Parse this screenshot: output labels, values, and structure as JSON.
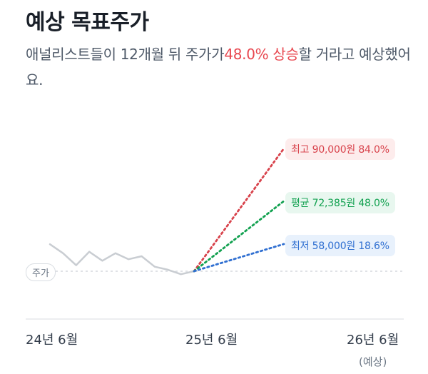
{
  "title": "예상 목표주가",
  "description": {
    "before": "애널리스트들이 12개월 뒤 주가가",
    "highlight": "48.0% 상승",
    "after": "할 거라고 예상했어요."
  },
  "targets": {
    "high": {
      "label": "최고 90,000원 84.0%"
    },
    "average": {
      "label": "평균 72,385원 48.0%"
    },
    "low": {
      "label": "최저 58,000원 18.6%"
    }
  },
  "price_chip": "주가",
  "x_axis": {
    "labels": [
      "24년 6월",
      "25년 6월",
      "26년 6월"
    ],
    "note": "(예상)"
  },
  "colors": {
    "high": "#d8424b",
    "average": "#12a150",
    "low": "#2f6fd1",
    "history": "#c9cdd2",
    "highlight": "#e8474f"
  },
  "chart_data": {
    "type": "line",
    "x": [
      "24년 6월",
      "25년 6월",
      "26년 6월"
    ],
    "history_relative_change_pct": [
      18,
      12,
      4,
      13,
      7,
      12,
      8,
      10,
      3,
      1,
      -2,
      0
    ],
    "projections": [
      {
        "name": "최고",
        "change_pct": 84.0,
        "price": 90000
      },
      {
        "name": "평균",
        "change_pct": 48.0,
        "price": 72385
      },
      {
        "name": "최저",
        "change_pct": 18.6,
        "price": 58000
      }
    ]
  }
}
